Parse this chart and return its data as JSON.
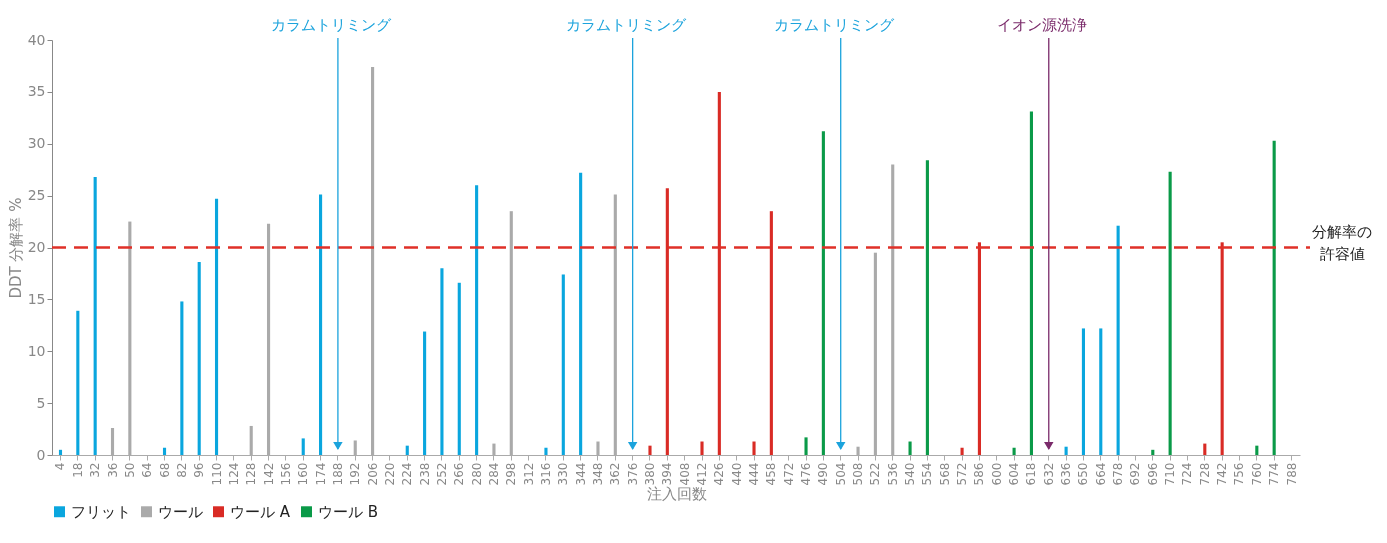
{
  "chart_data": {
    "type": "bar",
    "xlabel": "注入回数",
    "ylabel": "DDT 分解率 %",
    "categories": [
      "4",
      "18",
      "32",
      "36",
      "50",
      "64",
      "68",
      "82",
      "96",
      "110",
      "124",
      "128",
      "142",
      "156",
      "160",
      "174",
      "188",
      "192",
      "206",
      "220",
      "224",
      "238",
      "252",
      "266",
      "280",
      "284",
      "298",
      "312",
      "316",
      "330",
      "344",
      "348",
      "362",
      "376",
      "380",
      "394",
      "408",
      "412",
      "426",
      "440",
      "444",
      "458",
      "472",
      "476",
      "490",
      "504",
      "508",
      "522",
      "536",
      "540",
      "554",
      "568",
      "572",
      "586",
      "600",
      "604",
      "618",
      "632",
      "636",
      "650",
      "664",
      "678",
      "692",
      "696",
      "710",
      "724",
      "728",
      "742",
      "756",
      "760",
      "774",
      "788"
    ],
    "series": [
      {
        "name": "フリット",
        "color": "#0aa6de",
        "values": [
          0.5,
          13.9,
          26.8,
          null,
          null,
          null,
          0.7,
          14.8,
          18.6,
          24.7,
          null,
          null,
          null,
          null,
          1.6,
          25.1,
          null,
          null,
          null,
          null,
          0.9,
          11.9,
          18.0,
          16.6,
          26.0,
          null,
          null,
          null,
          0.7,
          17.4,
          27.2,
          null,
          null,
          null,
          null,
          null,
          null,
          null,
          null,
          null,
          null,
          null,
          null,
          null,
          null,
          null,
          null,
          null,
          null,
          null,
          null,
          null,
          null,
          null,
          null,
          null,
          null,
          null,
          0.8,
          12.2,
          12.2,
          22.1,
          null,
          null,
          null,
          null,
          null,
          null,
          null,
          null,
          null,
          null
        ]
      },
      {
        "name": "ウール",
        "color": "#aaaaaa",
        "values": [
          null,
          null,
          null,
          2.6,
          22.5,
          null,
          null,
          null,
          null,
          null,
          null,
          2.8,
          22.3,
          null,
          null,
          null,
          null,
          1.4,
          37.4,
          null,
          null,
          null,
          null,
          null,
          null,
          1.1,
          23.5,
          null,
          null,
          null,
          null,
          1.3,
          25.1,
          null,
          null,
          null,
          null,
          null,
          null,
          null,
          null,
          null,
          null,
          null,
          null,
          null,
          0.8,
          19.5,
          28.0,
          null,
          null,
          null,
          null,
          null,
          null,
          null,
          null,
          null,
          null,
          null,
          null,
          null,
          null,
          null,
          null,
          null,
          null,
          null,
          null,
          null,
          null,
          null
        ]
      },
      {
        "name": "ウール A",
        "color": "#d92b25",
        "values": [
          null,
          null,
          null,
          null,
          null,
          null,
          null,
          null,
          null,
          null,
          null,
          null,
          null,
          null,
          null,
          null,
          null,
          null,
          null,
          null,
          null,
          null,
          null,
          null,
          null,
          null,
          null,
          null,
          null,
          null,
          null,
          null,
          null,
          null,
          0.9,
          25.7,
          null,
          1.3,
          35.0,
          null,
          1.3,
          23.5,
          null,
          null,
          null,
          null,
          null,
          null,
          null,
          null,
          null,
          null,
          0.7,
          20.5,
          null,
          null,
          null,
          null,
          null,
          null,
          null,
          null,
          null,
          null,
          null,
          null,
          1.1,
          20.5,
          null,
          null,
          null,
          null
        ]
      },
      {
        "name": "ウール B",
        "color": "#0a9a48",
        "values": [
          null,
          null,
          null,
          null,
          null,
          null,
          null,
          null,
          null,
          null,
          null,
          null,
          null,
          null,
          null,
          null,
          null,
          null,
          null,
          null,
          null,
          null,
          null,
          null,
          null,
          null,
          null,
          null,
          null,
          null,
          null,
          null,
          null,
          null,
          null,
          null,
          null,
          null,
          null,
          null,
          null,
          null,
          null,
          1.7,
          31.2,
          null,
          null,
          null,
          null,
          1.3,
          28.4,
          null,
          null,
          null,
          null,
          0.7,
          33.1,
          null,
          null,
          null,
          null,
          null,
          null,
          0.5,
          27.3,
          null,
          null,
          null,
          null,
          0.9,
          30.3,
          null
        ]
      }
    ],
    "ylim": [
      0,
      40
    ],
    "yticks": [
      0,
      5,
      10,
      15,
      20,
      25,
      30,
      35,
      40
    ],
    "grid": false,
    "legend": "bottom",
    "ref_lines": [
      {
        "axis": "y",
        "value": 20,
        "label": "分解率の許容値",
        "color": "#e03028",
        "line_style": "dashed"
      },
      {
        "axis": "x",
        "value": "188",
        "label": "カラムトリミング",
        "color": "#1ba3dc"
      },
      {
        "axis": "x",
        "value": "376",
        "label": "カラムトリミング",
        "color": "#1ba3dc"
      },
      {
        "axis": "x",
        "value": "504",
        "label": "カラムトリミング",
        "color": "#1ba3dc"
      },
      {
        "axis": "x",
        "value": "632",
        "label": "イオン源洗浄",
        "color": "#7a2a6a"
      }
    ]
  }
}
